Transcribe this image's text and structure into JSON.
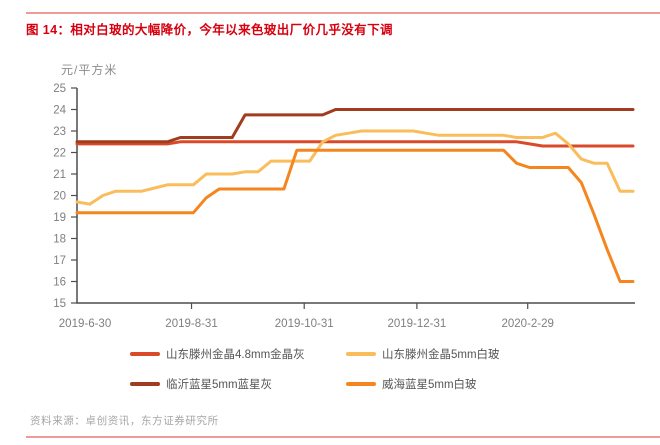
{
  "figure": {
    "title": "图 14：相对白玻的大幅降价，今年以来色玻出厂价几乎没有下调",
    "source_note": "资料来源：卓创资讯，东方证券研究所"
  },
  "chart_data": {
    "type": "line",
    "title": "相对白玻的大幅降价，今年以来色玻出厂价几乎没有下调",
    "unit_label": "元/平方米",
    "xlabel": "",
    "ylabel": "元/平方米",
    "ylim": [
      15,
      25
    ],
    "y_ticks": [
      15,
      16,
      17,
      18,
      19,
      20,
      21,
      22,
      23,
      24,
      25
    ],
    "x_tick_labels": [
      "2019-6-30",
      "2019-8-31",
      "2019-10-31",
      "2019-12-31",
      "2020-2-29"
    ],
    "x_tick_days": [
      0,
      62,
      123,
      184,
      244
    ],
    "x_total_days": 301,
    "sample_interval_days": 7,
    "grid": false,
    "legend_position": "bottom",
    "axis_color": "#4d4d4d",
    "tick_text_color": "#7f7f7f",
    "series": [
      {
        "name": "山东滕州金晶4.8mm金晶灰",
        "color": "#d9492a",
        "values": [
          22.4,
          22.4,
          22.4,
          22.4,
          22.4,
          22.4,
          22.4,
          22.4,
          22.5,
          22.5,
          22.5,
          22.5,
          22.5,
          22.5,
          22.5,
          22.5,
          22.5,
          22.5,
          22.5,
          22.5,
          22.5,
          22.5,
          22.5,
          22.5,
          22.5,
          22.5,
          22.5,
          22.5,
          22.5,
          22.5,
          22.5,
          22.5,
          22.5,
          22.5,
          22.5,
          22.4,
          22.3,
          22.3,
          22.3,
          22.3,
          22.3,
          22.3,
          22.3,
          22.3
        ]
      },
      {
        "name": "山东滕州金晶5mm白玻",
        "color": "#f9bd5b",
        "values": [
          19.7,
          19.6,
          20.0,
          20.2,
          20.2,
          20.2,
          20.35,
          20.5,
          20.5,
          20.5,
          21.0,
          21.0,
          21.0,
          21.1,
          21.1,
          21.6,
          21.6,
          21.6,
          21.6,
          22.5,
          22.8,
          22.9,
          23.0,
          23.0,
          23.0,
          23.0,
          23.0,
          22.9,
          22.8,
          22.8,
          22.8,
          22.8,
          22.8,
          22.8,
          22.7,
          22.7,
          22.7,
          22.9,
          22.4,
          21.7,
          21.5,
          21.5,
          20.2,
          20.2
        ]
      },
      {
        "name": "临沂蓝星5mm蓝星灰",
        "color": "#a23c1f",
        "values": [
          22.5,
          22.5,
          22.5,
          22.5,
          22.5,
          22.5,
          22.5,
          22.5,
          22.7,
          22.7,
          22.7,
          22.7,
          22.7,
          23.75,
          23.75,
          23.75,
          23.75,
          23.75,
          23.75,
          23.75,
          24.0,
          24.0,
          24.0,
          24.0,
          24.0,
          24.0,
          24.0,
          24.0,
          24.0,
          24.0,
          24.0,
          24.0,
          24.0,
          24.0,
          24.0,
          24.0,
          24.0,
          24.0,
          24.0,
          24.0,
          24.0,
          24.0,
          24.0,
          24.0
        ]
      },
      {
        "name": "威海蓝星5mm白玻",
        "color": "#f5861f",
        "values": [
          19.2,
          19.2,
          19.2,
          19.2,
          19.2,
          19.2,
          19.2,
          19.2,
          19.2,
          19.2,
          19.9,
          20.3,
          20.3,
          20.3,
          20.3,
          20.3,
          20.3,
          22.1,
          22.1,
          22.1,
          22.1,
          22.1,
          22.1,
          22.1,
          22.1,
          22.1,
          22.1,
          22.1,
          22.1,
          22.1,
          22.1,
          22.1,
          22.1,
          22.1,
          21.5,
          21.3,
          21.3,
          21.3,
          21.3,
          20.6,
          19.1,
          17.5,
          16.0,
          16.0
        ]
      }
    ]
  },
  "colors": {
    "title_red": "#d7000f",
    "rule_pink": "#ec9b99",
    "axis_gray": "#4d4d4d",
    "label_gray": "#7f7f7f",
    "source_gray": "#a6a6a6"
  }
}
